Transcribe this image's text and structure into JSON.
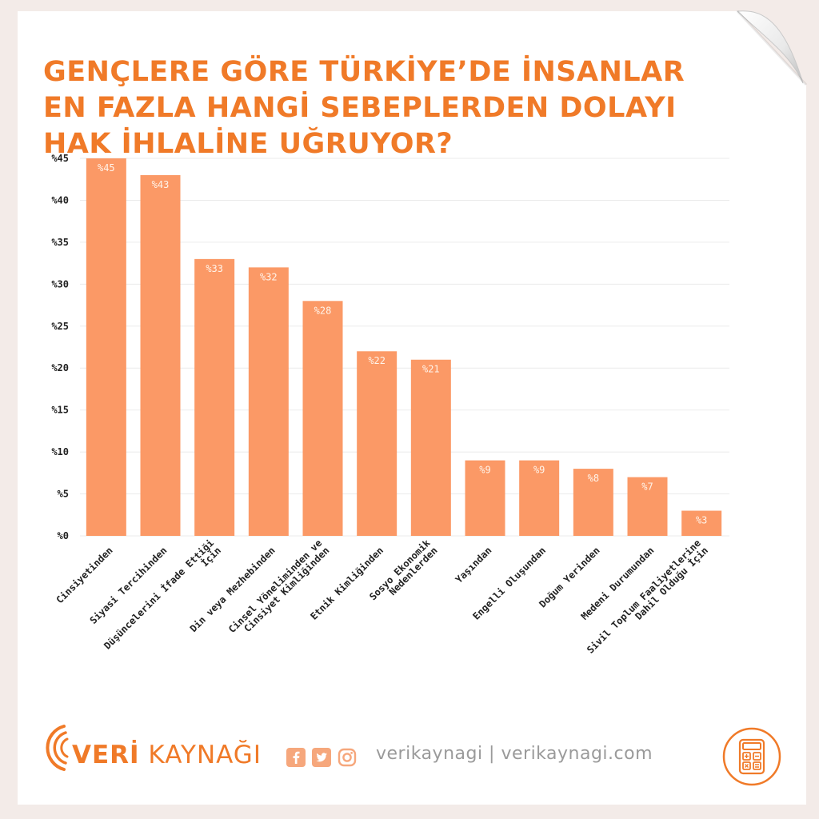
{
  "header": {
    "title_lines": [
      "GENÇLERE GÖRE TÜRKİYE’DE İNSANLAR",
      "EN FAZLA HANGİ SEBEPLERDEN DOLAYI",
      "HAK İHLALİNE UĞRUYOR?"
    ]
  },
  "chart_data": {
    "type": "bar",
    "title": "GENÇLERE GÖRE TÜRKİYE’DE İNSANLAR EN FAZLA HANGİ SEBEPLERDEN DOLAYI HAK İHLALİNE UĞRUYOR?",
    "categories": [
      [
        "Cinsiyetinden"
      ],
      [
        "Siyasi Tercihinden"
      ],
      [
        "Düşüncelerini İfade Ettiği",
        "İçin"
      ],
      [
        "Din veya Mezhebinden"
      ],
      [
        "Cinsel Yöneliminden ve",
        "Cinsiyet Kimliğinden"
      ],
      [
        "Etnik Kimliğinden"
      ],
      [
        "Sosyo Ekonomik",
        "Nedenlerden"
      ],
      [
        "Yaşından"
      ],
      [
        "Engelli Oluşundan"
      ],
      [
        "Doğum Yerinden"
      ],
      [
        "Medeni Durumundan"
      ],
      [
        "Sivil Toplum Faaliyetlerine",
        "Dahil Olduğu İçin"
      ]
    ],
    "values": [
      45,
      43,
      33,
      32,
      28,
      22,
      21,
      9,
      9,
      8,
      7,
      3
    ],
    "value_labels": [
      "%45",
      "%43",
      "%33",
      "%32",
      "%28",
      "%22",
      "%21",
      "%9",
      "%9",
      "%8",
      "%7",
      "%3"
    ],
    "y_ticks": [
      "%0",
      "%5",
      "%10",
      "%15",
      "%20",
      "%25",
      "%30",
      "%35",
      "%40",
      "%45"
    ],
    "ylim": [
      0,
      45
    ],
    "grid": true,
    "bar_color": "#fb9966",
    "label_color": "#fff4ea"
  },
  "footer": {
    "brand_bold": "VERİ",
    "brand_rest": " KAYNAĞI",
    "handle": "verikaynagi | verikaynagi.com",
    "social_icons": [
      "facebook-icon",
      "twitter-icon",
      "instagram-icon"
    ],
    "accent": "#f07a28"
  }
}
